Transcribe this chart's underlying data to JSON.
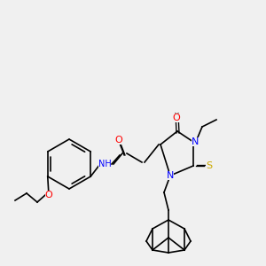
{
  "bg_color": "#f0f0f0",
  "bond_color": "#000000",
  "atom_colors": {
    "N": "#0000ff",
    "O": "#ff0000",
    "S": "#ccaa00",
    "H": "#44aa88"
  },
  "line_width": 1.2,
  "font_size": 7
}
